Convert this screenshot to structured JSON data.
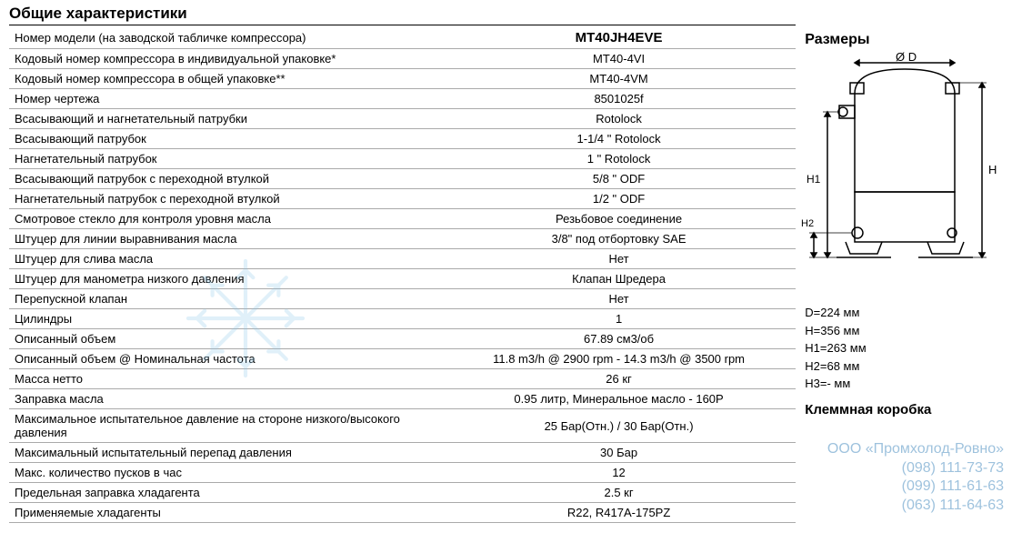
{
  "title": "Общие характеристики",
  "rows": [
    {
      "label": "Номер модели (на заводской табличке компрессора)",
      "value": "MT40JH4EVE",
      "cls": "model"
    },
    {
      "label": "Кодовый номер компрессора в индивидуальной упаковке*",
      "value": "MT40-4VI"
    },
    {
      "label": "Кодовый номер компрессора в общей упаковке**",
      "value": "MT40-4VM"
    },
    {
      "label": "Номер чертежа",
      "value": "8501025f"
    },
    {
      "label": "Всасывающий и нагнетательный патрубки",
      "value": "Rotolock",
      "sep": true
    },
    {
      "label": "Всасывающий патрубок",
      "value": "1-1/4 \" Rotolock"
    },
    {
      "label": "Нагнетательный патрубок",
      "value": "1 \" Rotolock"
    },
    {
      "label": "Всасывающий патрубок с переходной втулкой",
      "value": "5/8 \" ODF"
    },
    {
      "label": "Нагнетательный патрубок с переходной втулкой",
      "value": "1/2 \" ODF"
    },
    {
      "label": "Смотровое стекло для контроля уровня масла",
      "value": "Резьбовое соединение",
      "sep": true
    },
    {
      "label": "Штуцер для линии выравнивания масла",
      "value": "3/8\" под отбортовку SAE"
    },
    {
      "label": "Штуцер для слива масла",
      "value": "Нет"
    },
    {
      "label": "Штуцер для манометра низкого давления",
      "value": "Клапан Шредера"
    },
    {
      "label": "Перепускной клапан",
      "value": "Нет"
    },
    {
      "label": "Цилиндры",
      "value": "1",
      "sep": true
    },
    {
      "label": "Описанный объем",
      "value": "67.89 см3/об"
    },
    {
      "label": "Описанный объем @ Номинальная частота",
      "value": "11.8 m3/h @ 2900 rpm - 14.3 m3/h @ 3500 rpm"
    },
    {
      "label": "Масса нетто",
      "value": "26 кг",
      "sep": true
    },
    {
      "label": "Заправка масла",
      "value": "0.95 литр, Минеральное масло - 160P"
    },
    {
      "label": "Максимальное испытательное давление на стороне низкого/высокого давления",
      "value": "25 Бар(Отн.) / 30 Бар(Отн.)",
      "sep": true
    },
    {
      "label": "Максимальный испытательный перепад давления",
      "value": "30 Бар"
    },
    {
      "label": "Макс. количество пусков в час",
      "value": "12"
    },
    {
      "label": "Предельная заправка хладагента",
      "value": "2.5 кг",
      "sep": true
    },
    {
      "label": "Применяемые хладагенты",
      "value": "R22, R417A-175PZ",
      "sep": true
    }
  ],
  "dimensions_title": "Размеры",
  "dims": {
    "D": "D=224 мм",
    "H": "H=356 мм",
    "H1": "H1=263 мм",
    "H2": "H2=68 мм",
    "H3": "H3=- мм"
  },
  "terminal_title": "Клеммная коробка",
  "watermark": {
    "company": "ООО «Промхолод-Ровно»",
    "phone1": "(098) 111-73-73",
    "phone2": "(099) 111-61-63",
    "phone3": "(063) 111-64-63"
  },
  "diagram": {
    "labels": {
      "D": "Ø D",
      "H": "H",
      "H1": "H1",
      "H2": "H2"
    },
    "colors": {
      "stroke": "#000000",
      "fill": "#ffffff"
    }
  },
  "snowflake_color": "#88c4e8"
}
